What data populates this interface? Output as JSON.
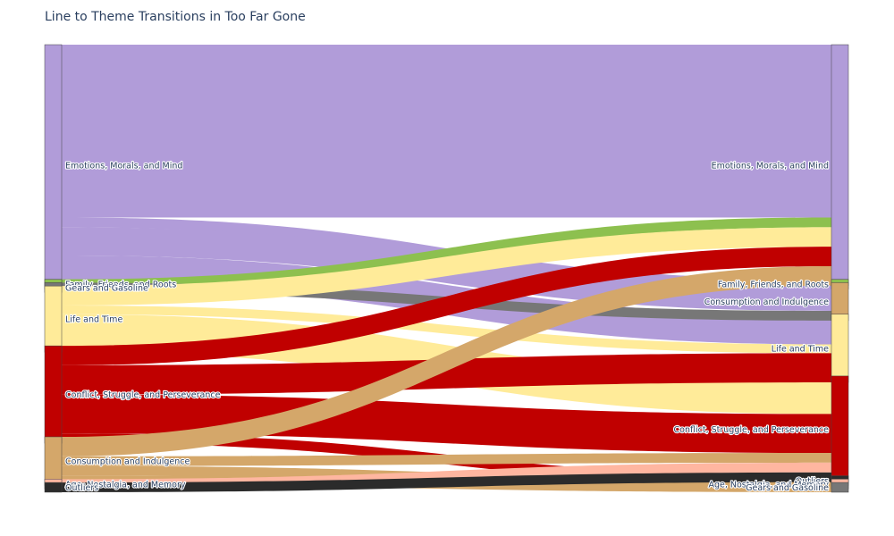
{
  "chart_data": {
    "type": "sankey",
    "title": "Line to Theme Transitions in Too Far Gone",
    "source_nodes": [
      {
        "label": "Emotions, Morals, and Mind",
        "color": "#b19cd9"
      },
      {
        "label": "Family, Friends, and Roots",
        "color": "#8dc04f"
      },
      {
        "label": "Gears and Gasoline",
        "color": "#777777"
      },
      {
        "label": "Life and Time",
        "color": "#ffeb99"
      },
      {
        "label": "Conflict, Struggle, and Perseverance",
        "color": "#c00000"
      },
      {
        "label": "Consumption and Indulgence",
        "color": "#d4a76a"
      },
      {
        "label": "Age, Nostalgia, and Memory",
        "color": "#ffb6a0"
      },
      {
        "label": "Outliers",
        "color": "#2b2b2b"
      }
    ],
    "target_nodes": [
      {
        "label": "Emotions, Morals, and Mind",
        "color": "#b19cd9"
      },
      {
        "label": "Family, Friends, and Roots",
        "color": "#8dc04f"
      },
      {
        "label": "Consumption and Indulgence",
        "color": "#d4a76a"
      },
      {
        "label": "Life and Time",
        "color": "#ffeb99"
      },
      {
        "label": "Conflict, Struggle, and Perseverance",
        "color": "#c00000"
      },
      {
        "label": "Outliers",
        "color": "#2b2b2b"
      },
      {
        "label": "Age, Nostalgia, and Memory",
        "color": "#ffb6a0"
      },
      {
        "label": "Gears and Gasoline",
        "color": "#777777"
      }
    ],
    "links": [
      {
        "source": 0,
        "target": 0,
        "value": 35.5
      },
      {
        "source": 0,
        "target": 1,
        "value": 2
      },
      {
        "source": 0,
        "target": 2,
        "value": 5.8
      },
      {
        "source": 0,
        "target": 3,
        "value": 6.2
      },
      {
        "source": 1,
        "target": 0,
        "value": 2
      },
      {
        "source": 2,
        "target": 2,
        "value": 2
      },
      {
        "source": 3,
        "target": 0,
        "value": 4
      },
      {
        "source": 3,
        "target": 3,
        "value": 1.8
      },
      {
        "source": 3,
        "target": 4,
        "value": 7.8
      },
      {
        "source": 4,
        "target": 0,
        "value": 4
      },
      {
        "source": 4,
        "target": 3,
        "value": 6
      },
      {
        "source": 4,
        "target": 4,
        "value": 8
      },
      {
        "source": 4,
        "target": 5,
        "value": 2
      },
      {
        "source": 5,
        "target": 0,
        "value": 4
      },
      {
        "source": 5,
        "target": 4,
        "value": 2
      },
      {
        "source": 5,
        "target": 6,
        "value": 2
      },
      {
        "source": 5,
        "target": 7,
        "value": 2
      },
      {
        "source": 6,
        "target": 4,
        "value": 2
      },
      {
        "source": 7,
        "target": 4,
        "value": 2
      }
    ]
  }
}
